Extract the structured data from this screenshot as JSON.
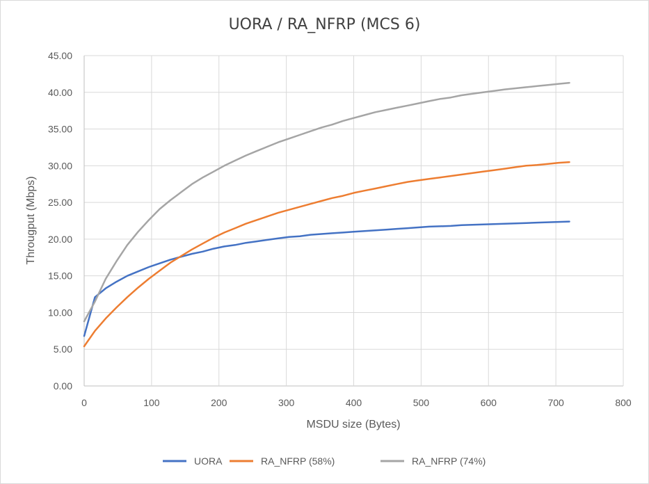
{
  "chart_data": {
    "type": "line",
    "title": "UORA / RA_NFRP (MCS 6)",
    "xlabel": "MSDU size (Bytes)",
    "ylabel": "Througput (Mbps)",
    "xlim": [
      0,
      800
    ],
    "ylim": [
      0,
      45
    ],
    "xticks": [
      "0",
      "100",
      "200",
      "300",
      "400",
      "500",
      "600",
      "700",
      "800"
    ],
    "yticks": [
      "0.00",
      "5.00",
      "10.00",
      "15.00",
      "20.00",
      "25.00",
      "30.00",
      "35.00",
      "40.00",
      "45.00"
    ],
    "grid": "vertical-and-horizontal",
    "legend_position": "bottom",
    "series": [
      {
        "name": "UORA",
        "color": "#4472c4",
        "x": [
          0,
          16,
          32,
          48,
          64,
          80,
          96,
          112,
          128,
          144,
          160,
          176,
          192,
          208,
          224,
          240,
          256,
          272,
          288,
          304,
          320,
          336,
          352,
          368,
          384,
          400,
          416,
          432,
          448,
          464,
          480,
          496,
          512,
          528,
          544,
          560,
          576,
          592,
          608,
          624,
          640,
          656,
          672,
          688,
          704,
          720
        ],
        "y": [
          6.8,
          12.1,
          13.3,
          14.2,
          15.0,
          15.6,
          16.2,
          16.7,
          17.2,
          17.6,
          18.0,
          18.3,
          18.7,
          19.0,
          19.2,
          19.5,
          19.7,
          19.9,
          20.1,
          20.3,
          20.4,
          20.6,
          20.7,
          20.8,
          20.9,
          21.0,
          21.1,
          21.2,
          21.3,
          21.4,
          21.5,
          21.6,
          21.7,
          21.75,
          21.8,
          21.9,
          21.95,
          22.0,
          22.05,
          22.1,
          22.15,
          22.2,
          22.25,
          22.3,
          22.35,
          22.4
        ]
      },
      {
        "name": "RA_NFRP (58%)",
        "color": "#ed7d31",
        "x": [
          0,
          16,
          32,
          48,
          64,
          80,
          96,
          112,
          128,
          144,
          160,
          176,
          192,
          208,
          224,
          240,
          256,
          272,
          288,
          304,
          320,
          336,
          352,
          368,
          384,
          400,
          416,
          432,
          448,
          464,
          480,
          496,
          512,
          528,
          544,
          560,
          576,
          592,
          608,
          624,
          640,
          656,
          672,
          688,
          704,
          720
        ],
        "y": [
          5.4,
          7.5,
          9.2,
          10.7,
          12.1,
          13.4,
          14.6,
          15.7,
          16.8,
          17.7,
          18.6,
          19.4,
          20.2,
          20.9,
          21.5,
          22.1,
          22.6,
          23.1,
          23.6,
          24.0,
          24.4,
          24.8,
          25.2,
          25.6,
          25.9,
          26.3,
          26.6,
          26.9,
          27.2,
          27.5,
          27.8,
          28.0,
          28.2,
          28.4,
          28.6,
          28.8,
          29.0,
          29.2,
          29.4,
          29.6,
          29.8,
          30.0,
          30.1,
          30.25,
          30.4,
          30.5
        ]
      },
      {
        "name": "RA_NFRP (74%)",
        "color": "#a5a5a5",
        "x": [
          0,
          16,
          32,
          48,
          64,
          80,
          96,
          112,
          128,
          144,
          160,
          176,
          192,
          208,
          224,
          240,
          256,
          272,
          288,
          304,
          320,
          336,
          352,
          368,
          384,
          400,
          416,
          432,
          448,
          464,
          480,
          496,
          512,
          528,
          544,
          560,
          576,
          592,
          608,
          624,
          640,
          656,
          672,
          688,
          704,
          720
        ],
        "y": [
          8.8,
          11.5,
          14.6,
          17.0,
          19.2,
          21.0,
          22.6,
          24.1,
          25.3,
          26.4,
          27.5,
          28.4,
          29.2,
          30.0,
          30.7,
          31.4,
          32.0,
          32.6,
          33.2,
          33.7,
          34.2,
          34.7,
          35.2,
          35.6,
          36.1,
          36.5,
          36.9,
          37.3,
          37.6,
          37.9,
          38.2,
          38.5,
          38.8,
          39.1,
          39.3,
          39.6,
          39.8,
          40.0,
          40.2,
          40.4,
          40.55,
          40.7,
          40.85,
          41.0,
          41.15,
          41.3
        ]
      }
    ]
  }
}
